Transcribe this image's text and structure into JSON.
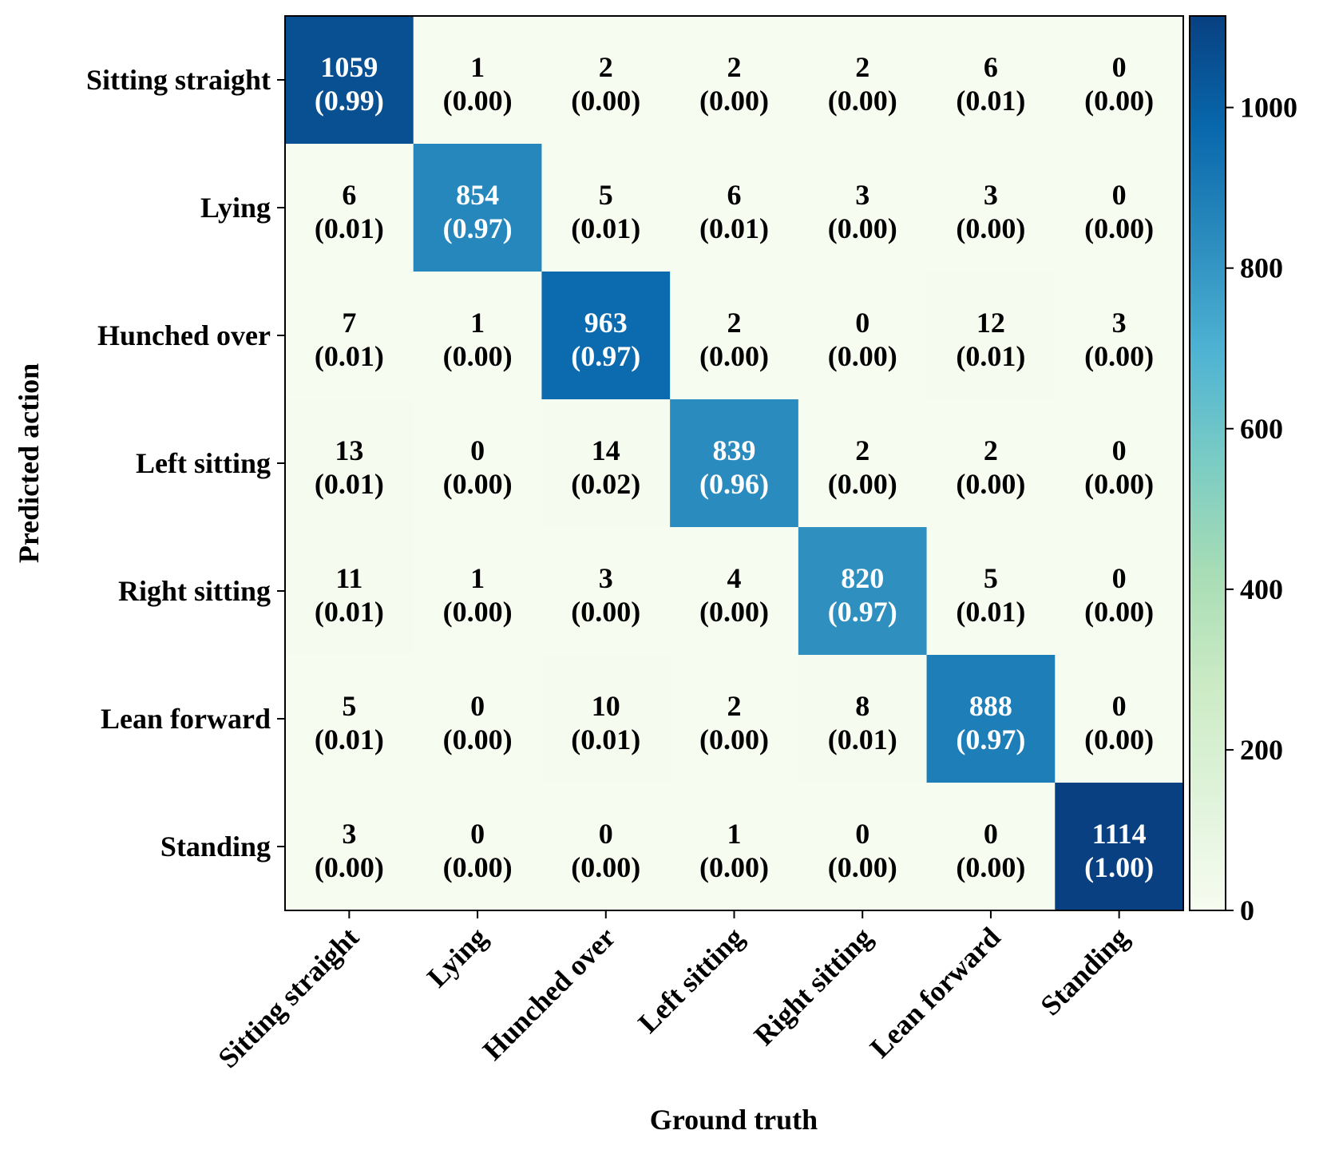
{
  "chart_data": {
    "type": "heatmap",
    "title": "",
    "xlabel": "Ground truth",
    "ylabel": "Predicted action",
    "row_labels": [
      "Sitting straight",
      "Lying",
      "Hunched over",
      "Left sitting",
      "Right sitting",
      "Lean forward",
      "Standing"
    ],
    "col_labels": [
      "Sitting straight",
      "Lying",
      "Hunched over",
      "Left sitting",
      "Right sitting",
      "Lean forward",
      "Standing"
    ],
    "counts": [
      [
        1059,
        1,
        2,
        2,
        2,
        6,
        0
      ],
      [
        6,
        854,
        5,
        6,
        3,
        3,
        0
      ],
      [
        7,
        1,
        963,
        2,
        0,
        12,
        3
      ],
      [
        13,
        0,
        14,
        839,
        2,
        2,
        0
      ],
      [
        11,
        1,
        3,
        4,
        820,
        5,
        0
      ],
      [
        5,
        0,
        10,
        2,
        8,
        888,
        0
      ],
      [
        3,
        0,
        0,
        1,
        0,
        0,
        1114
      ]
    ],
    "proportions": [
      [
        "(0.99)",
        "(0.00)",
        "(0.00)",
        "(0.00)",
        "(0.00)",
        "(0.01)",
        "(0.00)"
      ],
      [
        "(0.01)",
        "(0.97)",
        "(0.01)",
        "(0.01)",
        "(0.00)",
        "(0.00)",
        "(0.00)"
      ],
      [
        "(0.01)",
        "(0.00)",
        "(0.97)",
        "(0.00)",
        "(0.00)",
        "(0.01)",
        "(0.00)"
      ],
      [
        "(0.01)",
        "(0.00)",
        "(0.02)",
        "(0.96)",
        "(0.00)",
        "(0.00)",
        "(0.00)"
      ],
      [
        "(0.01)",
        "(0.00)",
        "(0.00)",
        "(0.00)",
        "(0.97)",
        "(0.01)",
        "(0.00)"
      ],
      [
        "(0.01)",
        "(0.00)",
        "(0.01)",
        "(0.00)",
        "(0.01)",
        "(0.97)",
        "(0.00)"
      ],
      [
        "(0.00)",
        "(0.00)",
        "(0.00)",
        "(0.00)",
        "(0.00)",
        "(0.00)",
        "(1.00)"
      ]
    ],
    "colorbar": {
      "colormap": "GnBu",
      "range": [
        0,
        1114
      ],
      "ticks": [
        0,
        200,
        400,
        600,
        800,
        1000
      ]
    },
    "colors": {
      "low": "#f7fcf0",
      "high": "#084081",
      "text_light": "#ffffff",
      "text_dark": "#000000"
    }
  }
}
